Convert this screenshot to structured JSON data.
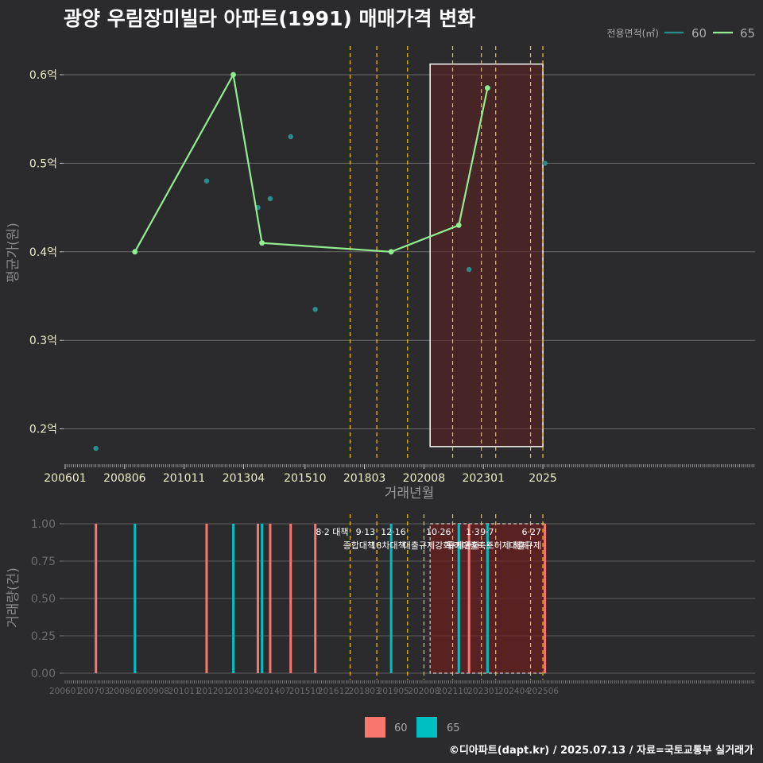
{
  "title": "광양 우림장미빌라 아파트(1991) 매매가격 변화",
  "credit": "©디아파트(dapt.kr) / 2025.07.13 / 자료=국토교통부 실거래가",
  "colors": {
    "s60": "#2a8d8d",
    "s65": "#90ee90",
    "bar60": "#f8766d",
    "bar65": "#00bfc4",
    "policy": "#f0c419",
    "shade": "#5a2222"
  },
  "chart_data": [
    {
      "type": "line",
      "ylabel": "평균가(원)",
      "xlabel": "거래년월",
      "ylim": [
        0.155,
        0.635
      ],
      "yticks": [
        0.2,
        0.3,
        0.4,
        0.5,
        0.6
      ],
      "ytick_labels": [
        "0.2억",
        "0.3억",
        "0.4억",
        "0.5억",
        "0.6억"
      ],
      "xticks": [
        "2006-01",
        "2008-06",
        "2010-11",
        "2013-04",
        "2015-10",
        "2018-03",
        "2020-08",
        "2023-01",
        "2025-06"
      ],
      "xtick_labels": [
        "200601",
        "200806",
        "201011",
        "201304",
        "201510",
        "201803",
        "202008",
        "202301",
        "2025"
      ],
      "legend_title": "전용면적(㎡)",
      "legend_position": "top-right",
      "series": [
        {
          "name": "60",
          "points": [
            [
              "2007-04",
              0.178
            ],
            [
              "2011-10",
              0.48
            ],
            [
              "2013-11",
              0.45
            ],
            [
              "2014-05",
              0.46
            ],
            [
              "2015-03",
              0.53
            ],
            [
              "2016-03",
              0.335
            ],
            [
              "2022-06",
              0.38
            ],
            [
              "2025-07",
              0.5
            ]
          ]
        },
        {
          "name": "65",
          "points": [
            [
              "2008-11",
              0.4
            ],
            [
              "2012-11",
              0.6
            ],
            [
              "2014-01",
              0.41
            ],
            [
              "2019-04",
              0.4
            ],
            [
              "2022-01",
              0.43
            ],
            [
              "2023-03",
              0.585
            ]
          ]
        }
      ],
      "highlight_box": {
        "x_from": "2020-11",
        "x_to": "2025-06",
        "y_from": 0.18,
        "y_to": 0.612
      },
      "policy_dates": [
        "2017-08",
        "2018-09",
        "2019-12",
        "2021-10",
        "2022-12",
        "2023-07",
        "2024-12",
        "2025-06"
      ]
    },
    {
      "type": "bar",
      "ylabel": "거래량(건)",
      "ylim": [
        -0.05,
        1.05
      ],
      "yticks": [
        0,
        0.25,
        0.5,
        0.75,
        1
      ],
      "ytick_labels": [
        "0.00",
        "0.25",
        "0.50",
        "0.75",
        "1.00"
      ],
      "xticks": [
        "2006-01",
        "2007-03",
        "2008-06",
        "2009-08",
        "2010-11",
        "2012-01",
        "2013-04",
        "2014-07",
        "2015-10",
        "2016-12",
        "2018-03",
        "2019-05",
        "2020-08",
        "2021-10",
        "2023-01",
        "2024-04",
        "2025-06"
      ],
      "xtick_labels": [
        "200601",
        "200703",
        "200806",
        "200908",
        "201011",
        "201201",
        "201304",
        "201407",
        "201510",
        "201612",
        "201803",
        "201905",
        "202008",
        "202110",
        "202301",
        "202404",
        "202506"
      ],
      "legend_position": "bottom",
      "series": [
        {
          "name": "60",
          "points": [
            [
              "2007-04",
              1
            ],
            [
              "2011-10",
              1
            ],
            [
              "2013-11",
              1
            ],
            [
              "2014-05",
              1
            ],
            [
              "2015-03",
              1
            ],
            [
              "2016-03",
              1
            ],
            [
              "2022-06",
              1
            ],
            [
              "2025-07",
              1
            ]
          ]
        },
        {
          "name": "65",
          "points": [
            [
              "2008-11",
              1
            ],
            [
              "2012-11",
              1
            ],
            [
              "2014-01",
              1
            ],
            [
              "2019-04",
              1
            ],
            [
              "2022-01",
              1
            ],
            [
              "2023-03",
              1
            ]
          ]
        }
      ],
      "highlight_box": {
        "x_from": "2020-11",
        "x_to": "2025-07",
        "y_from": 0,
        "y_to": 1
      },
      "policies": [
        {
          "date": "2017-08",
          "line1": "8·2 대책",
          "line2": ""
        },
        {
          "date": "2018-09",
          "line1": "9·13",
          "line2": "종합대책"
        },
        {
          "date": "2019-12",
          "line1": "12·16",
          "line2": "18차대책"
        },
        {
          "date": "2020-08",
          "line1": "",
          "line2": ""
        },
        {
          "date": "2021-10",
          "line1": "10·26",
          "line2": "대출규제강화"
        },
        {
          "date": "2022-12",
          "line1": "1·3",
          "line2": "규제완화"
        },
        {
          "date": "2023-07",
          "line1": "9·7",
          "line2": "특례대출축소"
        },
        {
          "date": "2024-12",
          "line1": "",
          "line2": "토허제 해제"
        },
        {
          "date": "2025-06",
          "line1": "6·27",
          "line2": "대출규제"
        }
      ]
    }
  ]
}
